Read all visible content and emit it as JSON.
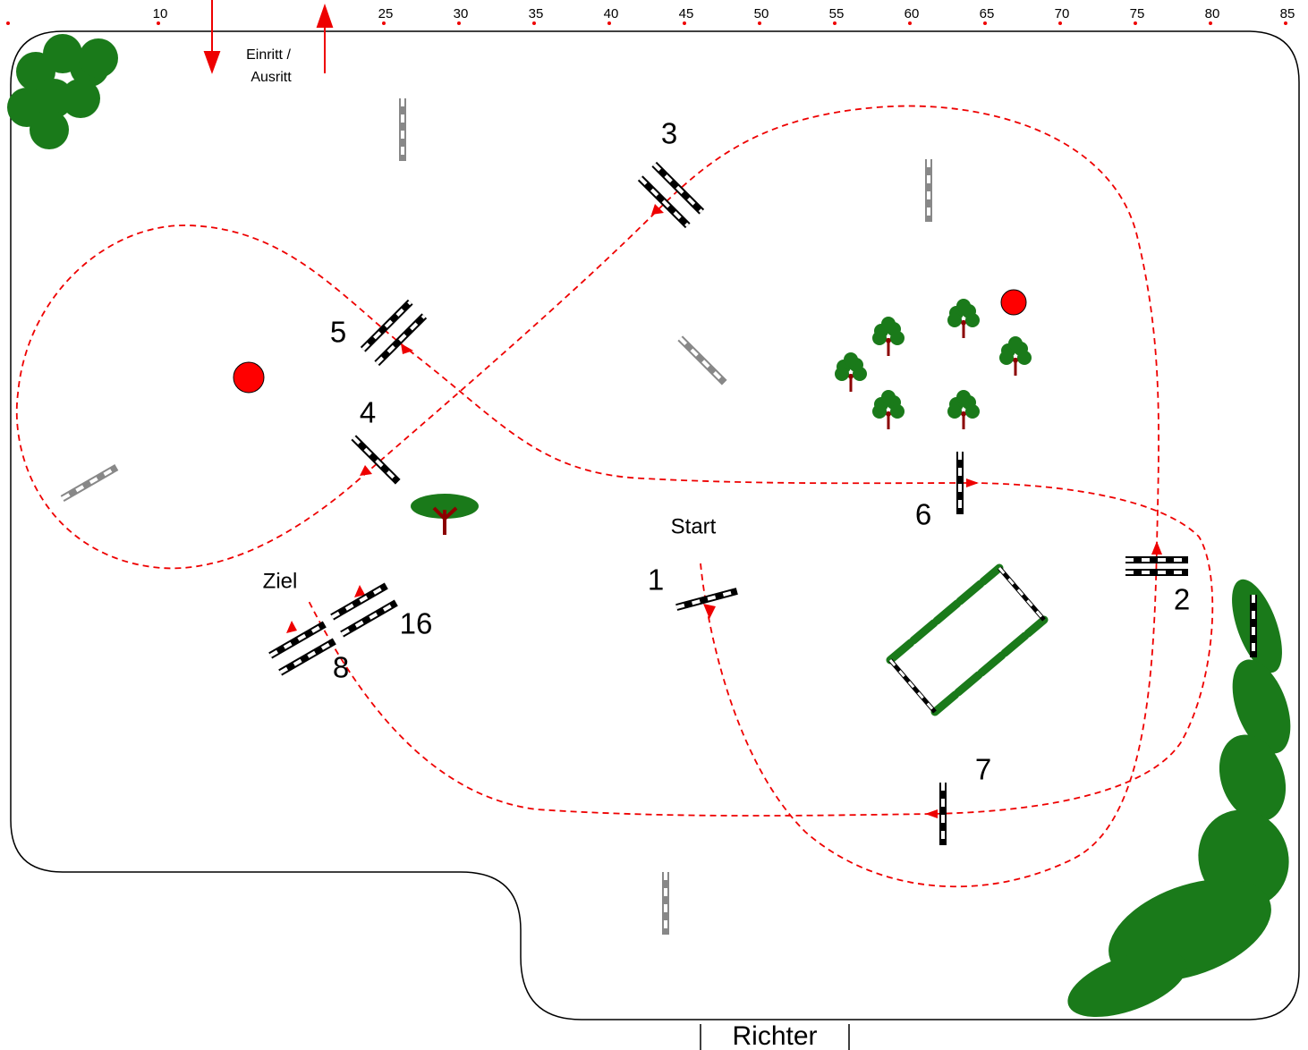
{
  "scale": {
    "marks": [
      10,
      25,
      30,
      35,
      40,
      45,
      50,
      55,
      60,
      65,
      70,
      75,
      80,
      85
    ]
  },
  "entrance": {
    "lines": [
      "Einritt /",
      "Ausritt"
    ]
  },
  "start": "Start",
  "finish": "Ziel",
  "judge": "Richter",
  "jumps": [
    {
      "label": "1"
    },
    {
      "label": "2"
    },
    {
      "label": "3"
    },
    {
      "label": "4"
    },
    {
      "label": "5"
    },
    {
      "label": "6"
    },
    {
      "label": "7"
    },
    {
      "label": "8"
    },
    {
      "label": "16"
    }
  ]
}
